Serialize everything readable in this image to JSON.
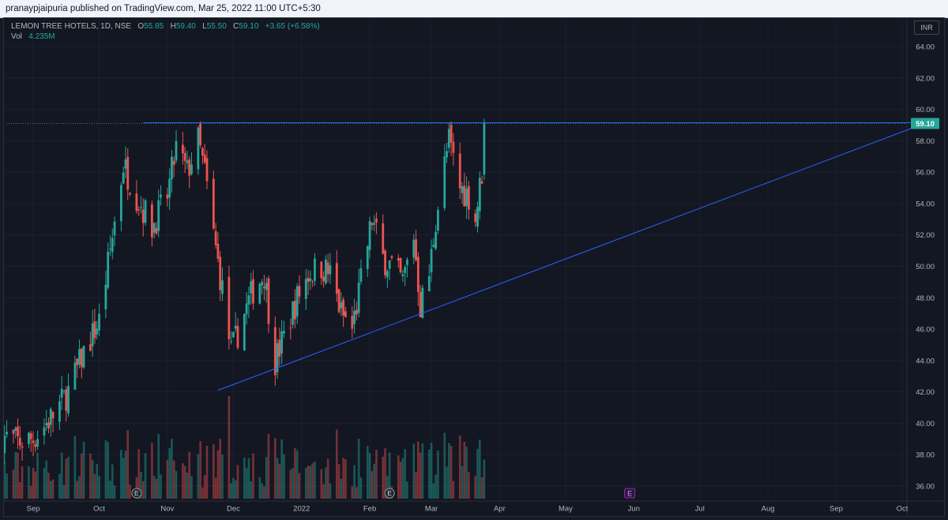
{
  "header": {
    "publisher_text": "pranaypjaipuria published on TradingView.com, Mar 25, 2022 11:00 UTC+5:30"
  },
  "legend": {
    "symbol": "LEMON TREE HOTELS, 1D, NSE",
    "o_label": "O",
    "o_value": "55.85",
    "h_label": "H",
    "h_value": "59.40",
    "l_label": "L",
    "l_value": "55.50",
    "c_label": "C",
    "c_value": "59.10",
    "change": "+3.65 (+6.58%)",
    "vol_label": "Vol",
    "vol_value": "4.235M"
  },
  "currency": "INR",
  "colors": {
    "up": "#26a69a",
    "down": "#ef5350",
    "trendline": "#2962ff",
    "last_price_badge": "#26a69a",
    "background": "#131722",
    "grid": "#1c2030"
  },
  "event_markers": [
    {
      "label": "E",
      "date": "2021-10-18",
      "kind": "earnings"
    },
    {
      "label": "E",
      "date": "2022-02-10",
      "kind": "earnings"
    },
    {
      "label": "E",
      "date": "2022-05-30",
      "kind": "earnings-upcoming"
    }
  ],
  "chart_data": {
    "type": "candlestick",
    "symbol": "LEMON TREE HOTELS",
    "interval": "1D",
    "exchange": "NSE",
    "y_axis": {
      "side": "right",
      "ticks": [
        "64.00",
        "62.00",
        "60.00",
        "58.00",
        "56.00",
        "54.00",
        "52.00",
        "50.00",
        "48.00",
        "46.00",
        "44.00",
        "42.00",
        "40.00",
        "38.00",
        "36.00"
      ],
      "range": [
        34.9,
        65.2
      ]
    },
    "x_axis": {
      "ticks": [
        {
          "label": "Sep",
          "date": "2021-09-01"
        },
        {
          "label": "Oct",
          "date": "2021-10-01"
        },
        {
          "label": "Nov",
          "date": "2021-11-01"
        },
        {
          "label": "Dec",
          "date": "2021-12-01"
        },
        {
          "label": "2022",
          "date": "2022-01-01"
        },
        {
          "label": "Feb",
          "date": "2022-02-01"
        },
        {
          "label": "Mar",
          "date": "2022-03-01"
        },
        {
          "label": "Apr",
          "date": "2022-04-01"
        },
        {
          "label": "May",
          "date": "2022-05-01"
        },
        {
          "label": "Jun",
          "date": "2022-06-01"
        },
        {
          "label": "Jul",
          "date": "2022-07-01"
        },
        {
          "label": "Aug",
          "date": "2022-08-01"
        },
        {
          "label": "Sep",
          "date": "2022-09-01"
        },
        {
          "label": "Oct",
          "date": "2022-10-01"
        }
      ],
      "range_start": "2021-08-18",
      "range_end": "2022-10-12"
    },
    "last_price": "59.10",
    "grid": true,
    "legend_position": "top-left",
    "ohlc_anchor_points": [
      {
        "date": "2021-08-18",
        "close": 39.2
      },
      {
        "date": "2021-08-25",
        "close": 38.8
      },
      {
        "date": "2021-09-01",
        "close": 39.0
      },
      {
        "date": "2021-09-10",
        "close": 40.5
      },
      {
        "date": "2021-09-17",
        "close": 42.0
      },
      {
        "date": "2021-09-24",
        "close": 44.5
      },
      {
        "date": "2021-10-01",
        "close": 46.5
      },
      {
        "date": "2021-10-06",
        "close": 51.0
      },
      {
        "date": "2021-10-12",
        "close": 56.5
      },
      {
        "date": "2021-10-18",
        "close": 54.5
      },
      {
        "date": "2021-10-25",
        "close": 52.5
      },
      {
        "date": "2021-11-01",
        "close": 54.5
      },
      {
        "date": "2021-11-05",
        "close": 57.5
      },
      {
        "date": "2021-11-10",
        "close": 56.0
      },
      {
        "date": "2021-11-15",
        "close": 58.0
      },
      {
        "date": "2021-11-18",
        "close": 56.0
      },
      {
        "date": "2021-11-22",
        "close": 52.0
      },
      {
        "date": "2021-11-26",
        "close": 48.5
      },
      {
        "date": "2021-11-30",
        "close": 44.5
      },
      {
        "date": "2021-12-06",
        "close": 47.0
      },
      {
        "date": "2021-12-10",
        "close": 48.5
      },
      {
        "date": "2021-12-15",
        "close": 49.5
      },
      {
        "date": "2021-12-20",
        "close": 44.0
      },
      {
        "date": "2021-12-24",
        "close": 45.5
      },
      {
        "date": "2021-12-30",
        "close": 48.0
      },
      {
        "date": "2022-01-04",
        "close": 49.5
      },
      {
        "date": "2022-01-10",
        "close": 50.0
      },
      {
        "date": "2022-01-14",
        "close": 49.5
      },
      {
        "date": "2022-01-19",
        "close": 47.0
      },
      {
        "date": "2022-01-24",
        "close": 46.0
      },
      {
        "date": "2022-01-28",
        "close": 49.0
      },
      {
        "date": "2022-02-02",
        "close": 53.0
      },
      {
        "date": "2022-02-07",
        "close": 50.5
      },
      {
        "date": "2022-02-11",
        "close": 50.0
      },
      {
        "date": "2022-02-16",
        "close": 49.0
      },
      {
        "date": "2022-02-21",
        "close": 52.0
      },
      {
        "date": "2022-02-24",
        "close": 47.5
      },
      {
        "date": "2022-02-28",
        "close": 49.5
      },
      {
        "date": "2022-03-03",
        "close": 53.0
      },
      {
        "date": "2022-03-07",
        "close": 56.5
      },
      {
        "date": "2022-03-09",
        "close": 58.0
      },
      {
        "date": "2022-03-14",
        "close": 55.0
      },
      {
        "date": "2022-03-18",
        "close": 54.5
      },
      {
        "date": "2022-03-21",
        "close": 53.0
      },
      {
        "date": "2022-03-24",
        "close": 56.0
      },
      {
        "date": "2022-03-25",
        "close": 59.1
      }
    ],
    "drawings": [
      {
        "type": "horizontal_line",
        "price": 59.15,
        "from": "2021-10-21",
        "to": "2022-10-12"
      },
      {
        "type": "trendline",
        "from": {
          "date": "2021-11-24",
          "price": 42.1
        },
        "to": {
          "date": "2022-10-12",
          "price": 59.15
        }
      }
    ],
    "volume_series": "per-candle histogram at bottom, colored by candle direction, max near Oct 2021 (~18M scale unlabeled)"
  }
}
